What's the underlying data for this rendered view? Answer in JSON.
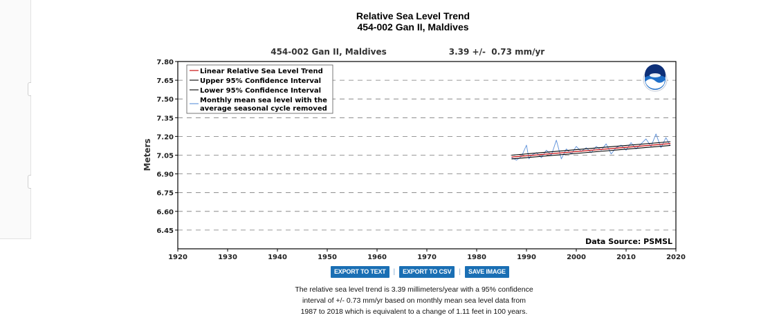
{
  "page": {
    "title_line1": "Relative Sea Level Trend",
    "title_line2": "454-002 Gan II, Maldives"
  },
  "chart_data": {
    "type": "line",
    "station_label": "454-002 Gan II, Maldives",
    "trend_label": "3.39 +/-  0.73 mm/yr",
    "ylabel": "Meters",
    "xlabel": "",
    "xlim": [
      1920,
      2020
    ],
    "ylim": [
      6.3,
      7.8
    ],
    "x_ticks": [
      1920,
      1930,
      1940,
      1950,
      1960,
      1970,
      1980,
      1990,
      2000,
      2010,
      2020
    ],
    "y_ticks": [
      "7.80",
      "7.65",
      "7.50",
      "7.35",
      "7.20",
      "7.05",
      "6.90",
      "6.75",
      "6.60",
      "6.45"
    ],
    "y_tick_values": [
      7.8,
      7.65,
      7.5,
      7.35,
      7.2,
      7.05,
      6.9,
      6.75,
      6.6,
      6.45
    ],
    "grid": "horizontal dashed",
    "legend_position": "top-left",
    "source_note": "Data Source: PSMSL",
    "logo": "noaa-logo",
    "series": [
      {
        "name": "Linear Relative Sea Level Trend",
        "color": "#cc2222",
        "x": [
          1987.0,
          2018.9
        ],
        "y": [
          7.035,
          7.143
        ]
      },
      {
        "name": "Upper 95% Confidence Interval",
        "color": "#000000",
        "x": [
          1987.0,
          2018.9
        ],
        "y": [
          7.05,
          7.158
        ]
      },
      {
        "name": "Lower 95% Confidence Interval",
        "color": "#000000",
        "x": [
          1987.0,
          2018.9
        ],
        "y": [
          7.02,
          7.128
        ]
      },
      {
        "name": "Monthly mean sea level with the average seasonal cycle removed",
        "name_line1": "Monthly mean sea level with the",
        "name_line2": "average seasonal cycle removed",
        "color": "#5b8fd9",
        "x": [
          1987.0,
          1988.0,
          1989.0,
          1990.0,
          1990.5,
          1991.0,
          1992.0,
          1993.0,
          1994.0,
          1995.0,
          1996.0,
          1997.0,
          1998.0,
          1999.0,
          2000.0,
          2001.0,
          2002.0,
          2003.0,
          2004.0,
          2005.0,
          2006.0,
          2007.0,
          2008.0,
          2009.0,
          2010.0,
          2011.0,
          2012.0,
          2013.0,
          2014.0,
          2015.0,
          2016.0,
          2017.0,
          2018.0,
          2018.8
        ],
        "y": [
          7.03,
          7.01,
          7.04,
          7.13,
          7.02,
          7.05,
          7.07,
          7.03,
          7.09,
          7.05,
          7.17,
          7.02,
          7.1,
          7.06,
          7.12,
          7.08,
          7.11,
          7.07,
          7.12,
          7.09,
          7.14,
          7.06,
          7.11,
          7.13,
          7.09,
          7.15,
          7.1,
          7.14,
          7.18,
          7.12,
          7.22,
          7.11,
          7.19,
          7.13
        ]
      }
    ]
  },
  "buttons": {
    "export_text": "EXPORT TO TEXT",
    "export_csv": "EXPORT TO CSV",
    "save_image": "SAVE IMAGE",
    "separator": "|"
  },
  "description": {
    "line1": "The relative sea level trend is 3.39 millimeters/year with a 95% confidence",
    "line2": "interval of +/- 0.73 mm/yr based on monthly mean sea level data from",
    "line3": "1987 to 2018 which is equivalent to a change of 1.11 feet in 100 years."
  }
}
